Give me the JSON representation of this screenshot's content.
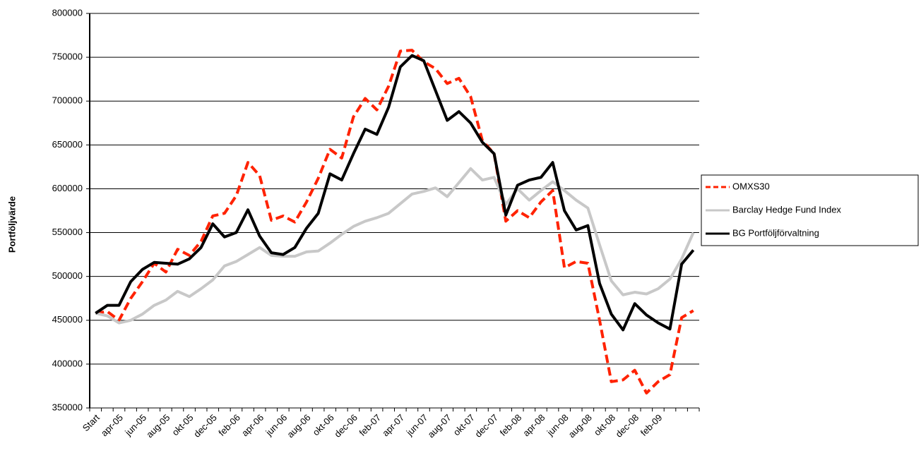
{
  "chart_data": {
    "type": "line",
    "y_label": "Portföljvärde",
    "categories": [
      "Start",
      null,
      "apr-05",
      null,
      "jun-05",
      null,
      "aug-05",
      null,
      "okt-05",
      null,
      "dec-05",
      null,
      "feb-06",
      null,
      "apr-06",
      null,
      "jun-06",
      null,
      "aug-06",
      null,
      "okt-06",
      null,
      "dec-06",
      null,
      "feb-07",
      null,
      "apr-07",
      null,
      "jun-07",
      null,
      "aug-07",
      null,
      "okt-07",
      null,
      "dec-07",
      null,
      "feb-08",
      null,
      "apr-08",
      null,
      "jun-08",
      null,
      "aug-08",
      null,
      "okt-08",
      null,
      "dec-08",
      null,
      "feb-09",
      null,
      null,
      null
    ],
    "series": [
      {
        "name": "OMXS30",
        "color": "#ff2200",
        "dash": true,
        "values": [
          458000,
          460000,
          450000,
          475000,
          494000,
          515000,
          505000,
          531000,
          524000,
          540000,
          569000,
          572000,
          592000,
          630000,
          615000,
          564000,
          569000,
          562000,
          585000,
          612000,
          645000,
          635000,
          682000,
          703000,
          690000,
          717000,
          757000,
          758000,
          745000,
          737000,
          720000,
          726000,
          705000,
          655000,
          640000,
          563000,
          575000,
          567000,
          585000,
          598000,
          510000,
          517000,
          515000,
          450000,
          380000,
          382000,
          393000,
          367000,
          380000,
          388000,
          453000,
          461000
        ]
      },
      {
        "name": "Barclay Hedge Fund Index",
        "color": "#c8c8c8",
        "dash": false,
        "values": [
          458000,
          455000,
          447000,
          450000,
          457000,
          467000,
          473000,
          483000,
          477000,
          486000,
          496000,
          512000,
          517000,
          525000,
          533000,
          524000,
          523000,
          523000,
          528000,
          529000,
          538000,
          548000,
          557000,
          563000,
          567000,
          572000,
          583000,
          594000,
          597000,
          601000,
          591000,
          607000,
          623000,
          610000,
          613000,
          582000,
          600000,
          587000,
          598000,
          608000,
          598000,
          587000,
          578000,
          536000,
          495000,
          479000,
          482000,
          480000,
          486000,
          497000,
          520000,
          550000
        ]
      },
      {
        "name": "BG Portföljförvaltning",
        "color": "#000000",
        "dash": false,
        "values": [
          458000,
          467000,
          467000,
          494000,
          508000,
          516000,
          515000,
          514000,
          520000,
          533000,
          560000,
          545000,
          550000,
          576000,
          546000,
          527000,
          525000,
          533000,
          555000,
          572000,
          617000,
          610000,
          640000,
          668000,
          662000,
          693000,
          739000,
          752000,
          746000,
          712000,
          678000,
          688000,
          675000,
          653000,
          640000,
          570000,
          604000,
          610000,
          613000,
          630000,
          575000,
          553000,
          558000,
          492000,
          457000,
          439000,
          469000,
          456000,
          447000,
          440000,
          514000,
          530000
        ]
      }
    ],
    "ylim": [
      350000,
      800000
    ],
    "yticks": [
      350000,
      400000,
      450000,
      500000,
      550000,
      600000,
      650000,
      700000,
      750000,
      800000
    ],
    "grid": true,
    "legend": "right"
  }
}
